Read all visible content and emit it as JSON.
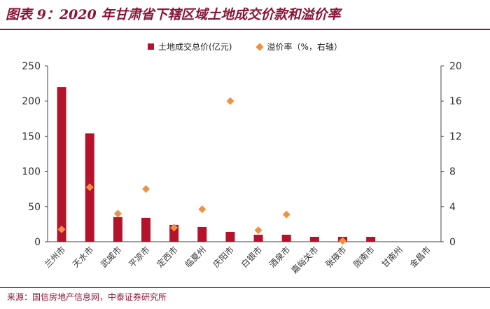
{
  "header": {
    "title": "图表 9：2020 年甘肃省下辖区域土地成交价款和溢价率"
  },
  "footer": {
    "source": "来源：国信房地产信息网，中泰证券研究所"
  },
  "colors": {
    "accent": "#8a1538",
    "bar": "#b5122b",
    "marker": "#f0913f"
  },
  "chart_data": {
    "type": "bar",
    "categories": [
      "兰州市",
      "天水市",
      "武威市",
      "平凉市",
      "定西市",
      "临夏州",
      "庆阳市",
      "白银市",
      "酒泉市",
      "嘉峪关市",
      "张掖市",
      "陇南市",
      "甘南州",
      "金昌市"
    ],
    "series": [
      {
        "name": "土地成交总价(亿元)",
        "type": "bar",
        "axis": "left",
        "values": [
          220,
          154,
          35,
          34,
          24,
          21,
          14,
          10,
          10,
          7,
          7,
          7,
          0,
          0
        ]
      },
      {
        "name": "溢价率（%，右轴）",
        "type": "scatter",
        "axis": "right",
        "values": [
          1.4,
          6.2,
          3.2,
          6.0,
          1.6,
          3.7,
          16.0,
          1.3,
          3.1,
          null,
          0.1,
          null,
          null,
          null
        ]
      }
    ],
    "left_axis": {
      "ylim": [
        0,
        250
      ],
      "ticks": [
        "0",
        "50",
        "100",
        "150",
        "200",
        "250"
      ]
    },
    "right_axis": {
      "ylim": [
        0,
        20
      ],
      "ticks": [
        "0",
        "4",
        "8",
        "12",
        "16",
        "20"
      ]
    },
    "legend": "top-center",
    "grid": false
  }
}
